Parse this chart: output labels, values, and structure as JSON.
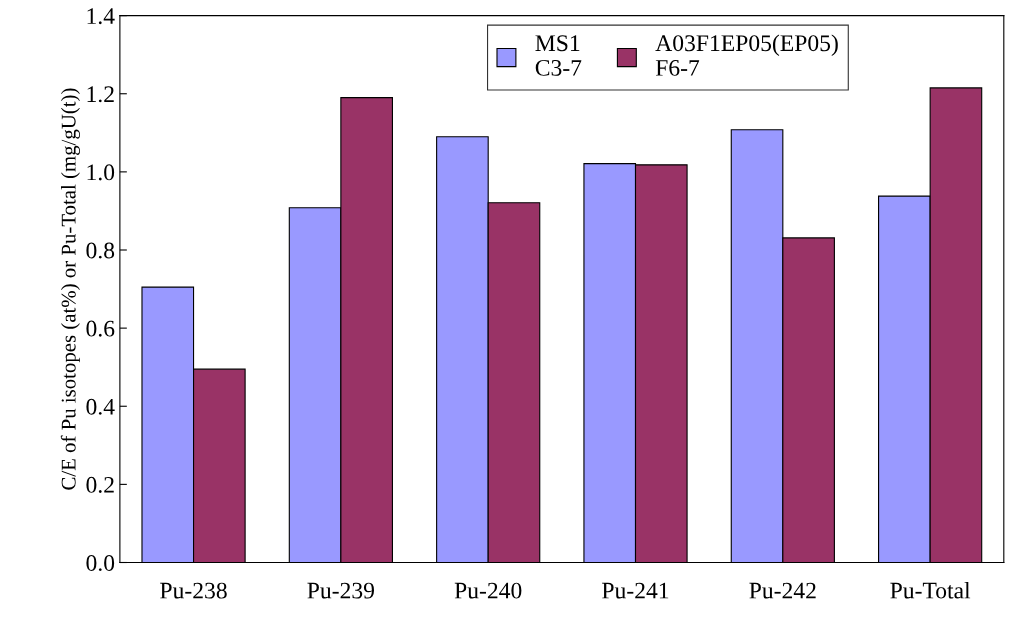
{
  "chart_data": {
    "type": "bar",
    "ylabel": "C/E of Pu isotopes (at%) or Pu-Total (mg/gU(t))",
    "categories": [
      "Pu-238",
      "Pu-239",
      "Pu-240",
      "Pu-241",
      "Pu-242",
      "Pu-Total"
    ],
    "series": [
      {
        "name": "MS1\nC3-7",
        "color": "#9999ff",
        "values": [
          0.705,
          0.908,
          1.09,
          1.021,
          1.108,
          0.938
        ]
      },
      {
        "name": "A03F1EP05(EP05)\nF6-7",
        "color": "#993366",
        "values": [
          0.495,
          1.19,
          0.921,
          1.018,
          0.831,
          1.215
        ]
      }
    ],
    "ylim": [
      0,
      1.4
    ],
    "yticks": [
      {
        "value": 0,
        "label": "0.0"
      },
      {
        "value": 0.2,
        "label": "0.2"
      },
      {
        "value": 0.4,
        "label": "0.4"
      },
      {
        "value": 0.6,
        "label": "0.6"
      },
      {
        "value": 0.8,
        "label": "0.8"
      },
      {
        "value": 1.0,
        "label": "1.0"
      },
      {
        "value": 1.2,
        "label": "1.2"
      },
      {
        "value": 1.4,
        "label": "1.4"
      }
    ],
    "grid": false,
    "legend": "top"
  }
}
